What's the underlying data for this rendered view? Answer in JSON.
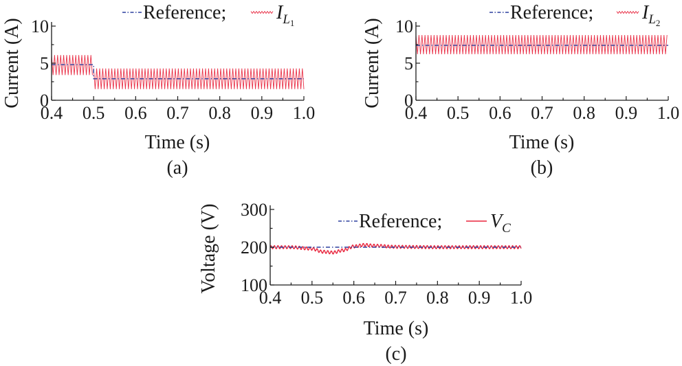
{
  "chart_data": [
    {
      "type": "line",
      "panel_label": "(a)",
      "xlabel": "Time (s)",
      "ylabel": "Current (A)",
      "xlim": [
        0.4,
        1.0
      ],
      "ylim": [
        0,
        10
      ],
      "xticks": [
        "0.4",
        "0.5",
        "0.6",
        "0.7",
        "0.8",
        "0.9",
        "1.0"
      ],
      "yticks": [
        "0",
        "5",
        "10"
      ],
      "legend_position": "top",
      "series": [
        {
          "name": "Reference;",
          "style": "dash-dot",
          "color": "#2b3f9e",
          "x": [
            0.4,
            0.5,
            0.5,
            1.0
          ],
          "y": [
            4.8,
            4.8,
            2.9,
            2.9
          ]
        },
        {
          "name_base": "I",
          "name_sub": "L",
          "name_subsub": "1",
          "style": "ripple-band",
          "color": "#e8243c",
          "segments": [
            {
              "x_start": 0.4,
              "x_end": 0.5,
              "y_min": 3.4,
              "y_max": 6.1
            },
            {
              "x_start": 0.5,
              "x_end": 1.0,
              "y_min": 1.5,
              "y_max": 4.3
            }
          ]
        }
      ]
    },
    {
      "type": "line",
      "panel_label": "(b)",
      "xlabel": "Time (s)",
      "ylabel": "Current (A)",
      "xlim": [
        0.4,
        1.0
      ],
      "ylim": [
        0,
        10
      ],
      "xticks": [
        "0.4",
        "0.5",
        "0.6",
        "0.7",
        "0.8",
        "0.9",
        "1.0"
      ],
      "yticks": [
        "0",
        "5",
        "10"
      ],
      "legend_position": "top",
      "series": [
        {
          "name": "Reference;",
          "style": "dash-dot",
          "color": "#2b3f9e",
          "x": [
            0.4,
            1.0
          ],
          "y": [
            7.4,
            7.4
          ]
        },
        {
          "name_base": "I",
          "name_sub": "L",
          "name_subsub": "2",
          "style": "ripple-band",
          "color": "#e8243c",
          "segments": [
            {
              "x_start": 0.4,
              "x_end": 1.0,
              "y_min": 6.2,
              "y_max": 8.8
            }
          ]
        }
      ]
    },
    {
      "type": "line",
      "panel_label": "(c)",
      "xlabel": "Time (s)",
      "ylabel": "Voltage (V)",
      "xlim": [
        0.4,
        1.0
      ],
      "ylim": [
        100,
        300
      ],
      "xticks": [
        "0.4",
        "0.5",
        "0.6",
        "0.7",
        "0.8",
        "0.9",
        "1.0"
      ],
      "yticks": [
        "100",
        "200",
        "300"
      ],
      "legend_position": "top-right",
      "series": [
        {
          "name": "Reference;",
          "style": "dash-dot",
          "color": "#2b3f9e",
          "x": [
            0.4,
            1.0
          ],
          "y": [
            200,
            200
          ]
        },
        {
          "name_base": "V",
          "name_sub": "C",
          "style": "solid",
          "color": "#e8243c",
          "x": [
            0.4,
            0.45,
            0.5,
            0.525,
            0.55,
            0.575,
            0.6,
            0.625,
            0.65,
            0.7,
            0.8,
            0.9,
            1.0
          ],
          "y": [
            200,
            200,
            196,
            188,
            186,
            192,
            202,
            206,
            204,
            201,
            200,
            200,
            200
          ],
          "ripple_amplitude": 4
        }
      ]
    }
  ]
}
